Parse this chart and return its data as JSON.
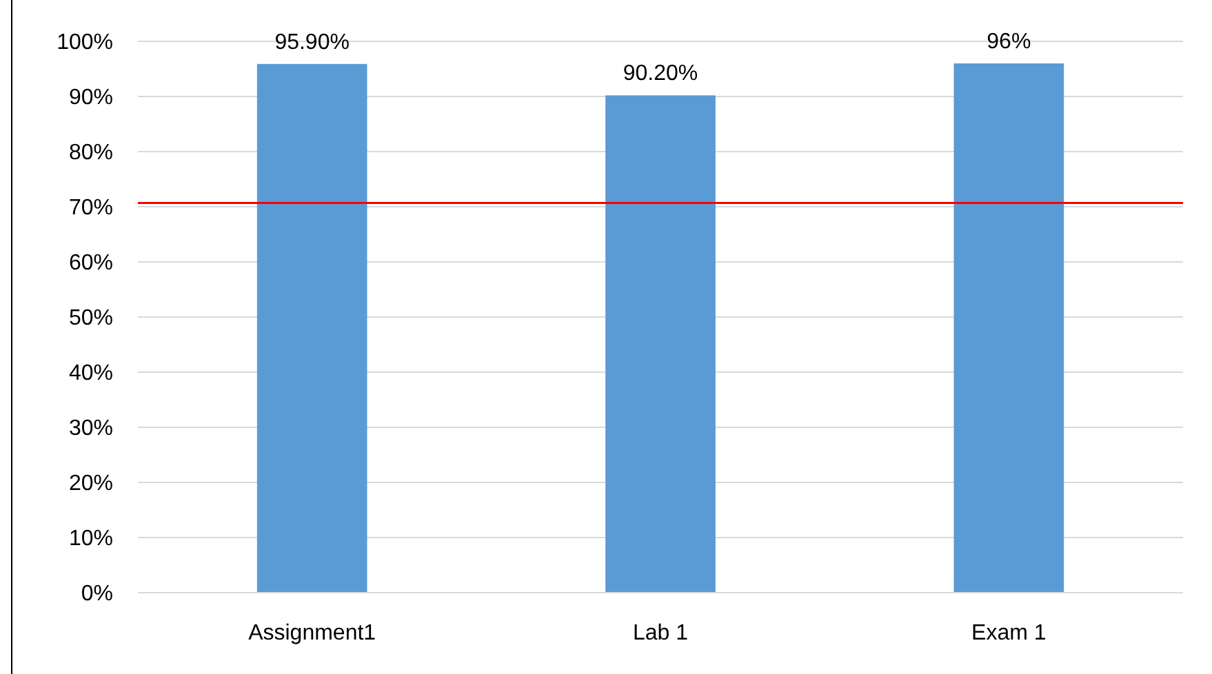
{
  "chart_data": {
    "type": "bar",
    "categories": [
      "Assignment1",
      "Lab 1",
      "Exam 1"
    ],
    "values": [
      95.9,
      90.2,
      96
    ],
    "color": "#5b9bd5",
    "value_labels": [
      "95.90%",
      "90.20%",
      "96%"
    ],
    "ylim": [
      0,
      100
    ],
    "yticks": [
      {
        "value": 0,
        "label": "0%"
      },
      {
        "value": 10,
        "label": "10%"
      },
      {
        "value": 20,
        "label": "20%"
      },
      {
        "value": 30,
        "label": "30%"
      },
      {
        "value": 40,
        "label": "40%"
      },
      {
        "value": 50,
        "label": "50%"
      },
      {
        "value": 60,
        "label": "60%"
      },
      {
        "value": 70,
        "label": "70%"
      },
      {
        "value": 80,
        "label": "80%"
      },
      {
        "value": 90,
        "label": "90%"
      },
      {
        "value": 100,
        "label": "100%"
      }
    ],
    "grid": "y",
    "ref_lines": [
      {
        "axis": "y",
        "value": 70.7,
        "color": "#ff0000"
      }
    ]
  }
}
